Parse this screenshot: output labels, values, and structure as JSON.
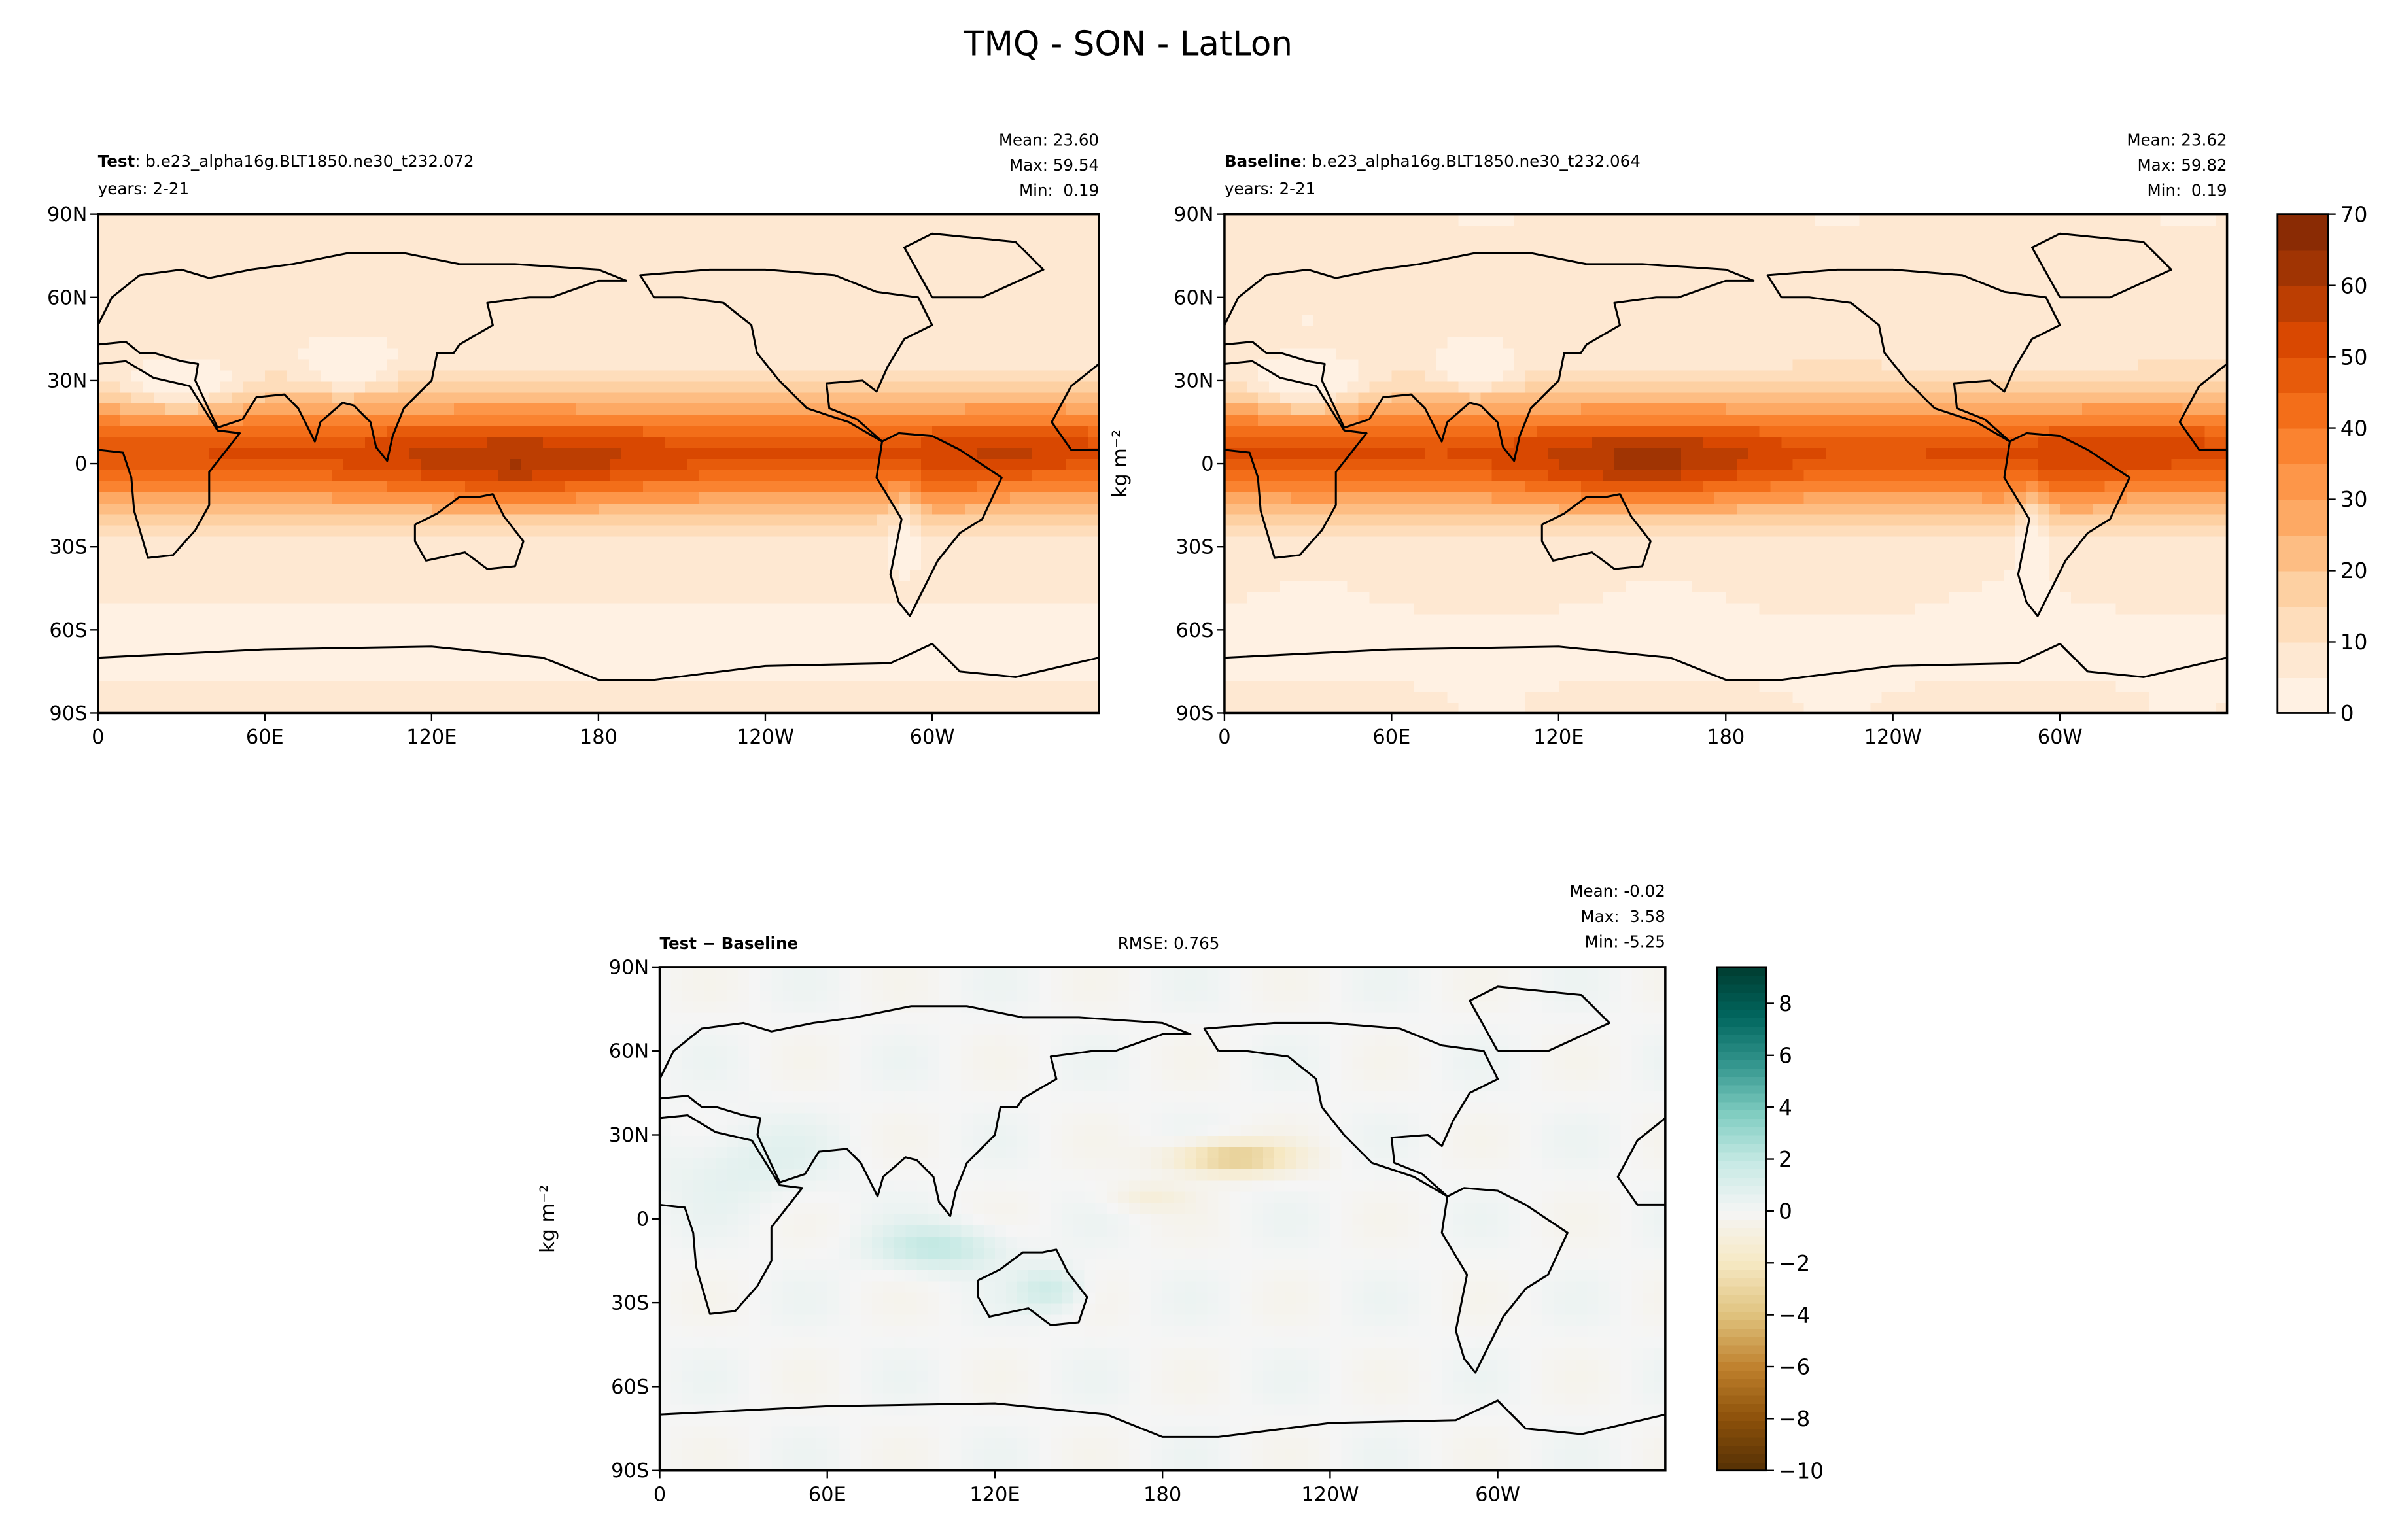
{
  "title": "TMQ - SON - LatLon",
  "chart_data": [
    {
      "type": "contour_map",
      "label": "Test",
      "name": ": b.e23_alpha16g.BLT1850.ne30_t232.072",
      "years": "years: 2-21",
      "stats": [
        "Mean: 23.60",
        "Max: 59.54",
        "Min:  0.19"
      ],
      "xlim": [
        0,
        360
      ],
      "ylim": [
        -90,
        90
      ],
      "xticks": [
        0,
        {
          "value": 60,
          "label": "60E"
        },
        {
          "value": 120,
          "label": "120E"
        },
        180,
        {
          "value": 240,
          "label": "120W"
        },
        {
          "value": 300,
          "label": "60W"
        }
      ],
      "yticks": [
        {
          "value": 90,
          "label": "90N"
        },
        {
          "value": 60,
          "label": "60N"
        },
        {
          "value": 30,
          "label": "30N"
        },
        0,
        {
          "value": -30,
          "label": "30S"
        },
        {
          "value": -60,
          "label": "60S"
        },
        {
          "value": -90,
          "label": "90S"
        }
      ]
    },
    {
      "type": "contour_map",
      "label": "Baseline",
      "name": ": b.e23_alpha16g.BLT1850.ne30_t232.064",
      "years": "years: 2-21",
      "stats": [
        "Mean: 23.62",
        "Max: 59.82",
        "Min:  0.19"
      ],
      "units": "kg m⁻²",
      "xlim": [
        0,
        360
      ],
      "ylim": [
        -90,
        90
      ],
      "xticks": [
        0,
        {
          "value": 60,
          "label": "60E"
        },
        {
          "value": 120,
          "label": "120E"
        },
        180,
        {
          "value": 240,
          "label": "120W"
        },
        {
          "value": 300,
          "label": "60W"
        }
      ],
      "yticks": [
        {
          "value": 90,
          "label": "90N"
        },
        {
          "value": 60,
          "label": "60N"
        },
        {
          "value": 30,
          "label": "30N"
        },
        0,
        {
          "value": -30,
          "label": "30S"
        },
        {
          "value": -60,
          "label": "60S"
        },
        {
          "value": -90,
          "label": "90S"
        }
      ],
      "colorbar": {
        "lim": [
          0,
          70
        ],
        "ticks": [
          0,
          10,
          20,
          30,
          40,
          50,
          60,
          70
        ],
        "levels": [
          0,
          5,
          10,
          15,
          20,
          25,
          30,
          35,
          40,
          45,
          50,
          55,
          60,
          65,
          70
        ],
        "colors": [
          "#fff5eb",
          "#fee6ce",
          "#fdd0a2",
          "#fdae6b",
          "#fd8d3c",
          "#f16913",
          "#d94801",
          "#a63603",
          "#7f2704"
        ]
      }
    },
    {
      "type": "contour_map",
      "label": "Test − Baseline",
      "rmse": "RMSE: 0.765",
      "stats": [
        "Mean: -0.02",
        "Max:  3.58",
        "Min: -5.25"
      ],
      "units": "kg m⁻²",
      "xlim": [
        0,
        360
      ],
      "ylim": [
        -90,
        90
      ],
      "xticks": [
        0,
        {
          "value": 60,
          "label": "60E"
        },
        {
          "value": 120,
          "label": "120E"
        },
        180,
        {
          "value": 240,
          "label": "120W"
        },
        {
          "value": 300,
          "label": "60W"
        }
      ],
      "yticks": [
        {
          "value": 90,
          "label": "90N"
        },
        {
          "value": 60,
          "label": "60N"
        },
        {
          "value": 30,
          "label": "30N"
        },
        0,
        {
          "value": -30,
          "label": "30S"
        },
        {
          "value": -60,
          "label": "60S"
        },
        {
          "value": -90,
          "label": "90S"
        }
      ],
      "colorbar": {
        "lim": [
          -10,
          9.4
        ],
        "ticks": [
          {
            "value": -10,
            "label": "−10"
          },
          {
            "value": -8,
            "label": "−8"
          },
          {
            "value": -6,
            "label": "−6"
          },
          {
            "value": -4,
            "label": "−4"
          },
          {
            "value": -2,
            "label": "−2"
          },
          0,
          2,
          4,
          6,
          8
        ],
        "colors": [
          "#543005",
          "#8c510a",
          "#bf812d",
          "#dfc27d",
          "#f6e8c3",
          "#f5f5f5",
          "#c7eae5",
          "#80cdc1",
          "#35978f",
          "#01665e",
          "#003c30"
        ]
      }
    }
  ]
}
